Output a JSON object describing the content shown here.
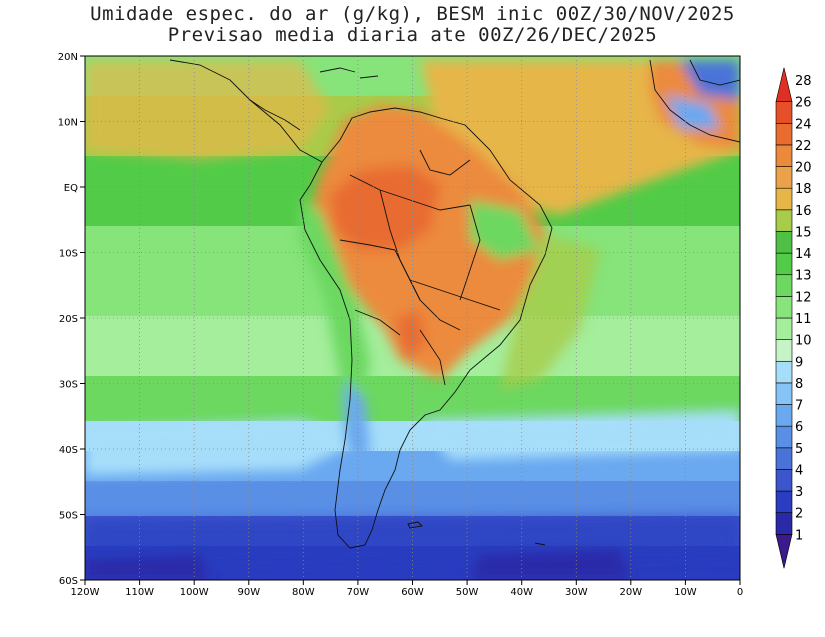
{
  "title": {
    "line1": "Umidade espec. do ar (g/kg), BESM inic 00Z/30/NOV/2025",
    "line2": "Previsao media diaria ate 00Z/26/DEC/2025"
  },
  "map": {
    "lon_ticks": [
      "120W",
      "110W",
      "100W",
      "90W",
      "80W",
      "70W",
      "60W",
      "50W",
      "40W",
      "30W",
      "20W",
      "10W",
      "0"
    ],
    "lat_ticks": [
      "20N",
      "10N",
      "EQ",
      "10S",
      "20S",
      "30S",
      "40S",
      "50S",
      "60S"
    ],
    "lon_range": [
      -120,
      0
    ],
    "lat_range": [
      -60,
      20
    ],
    "grid": "dotted"
  },
  "colorbar": {
    "labels": [
      "1",
      "2",
      "3",
      "4",
      "5",
      "6",
      "7",
      "8",
      "9",
      "10",
      "11",
      "12",
      "13",
      "14",
      "15",
      "16",
      "18",
      "20",
      "22",
      "24",
      "26",
      "28"
    ],
    "colors": [
      "#3a1a8c",
      "#2a2aa8",
      "#2a3cc0",
      "#3c55cc",
      "#4a73d8",
      "#5a8fe6",
      "#6aa8f0",
      "#86c4f6",
      "#a6defa",
      "#c6f4c6",
      "#a4ee9c",
      "#86e47a",
      "#6cd860",
      "#52cc48",
      "#4ec044",
      "#a8cc4a",
      "#e6b648",
      "#eca24a",
      "#ec8a3c",
      "#e86c30",
      "#e65028",
      "#e03024"
    ]
  }
}
